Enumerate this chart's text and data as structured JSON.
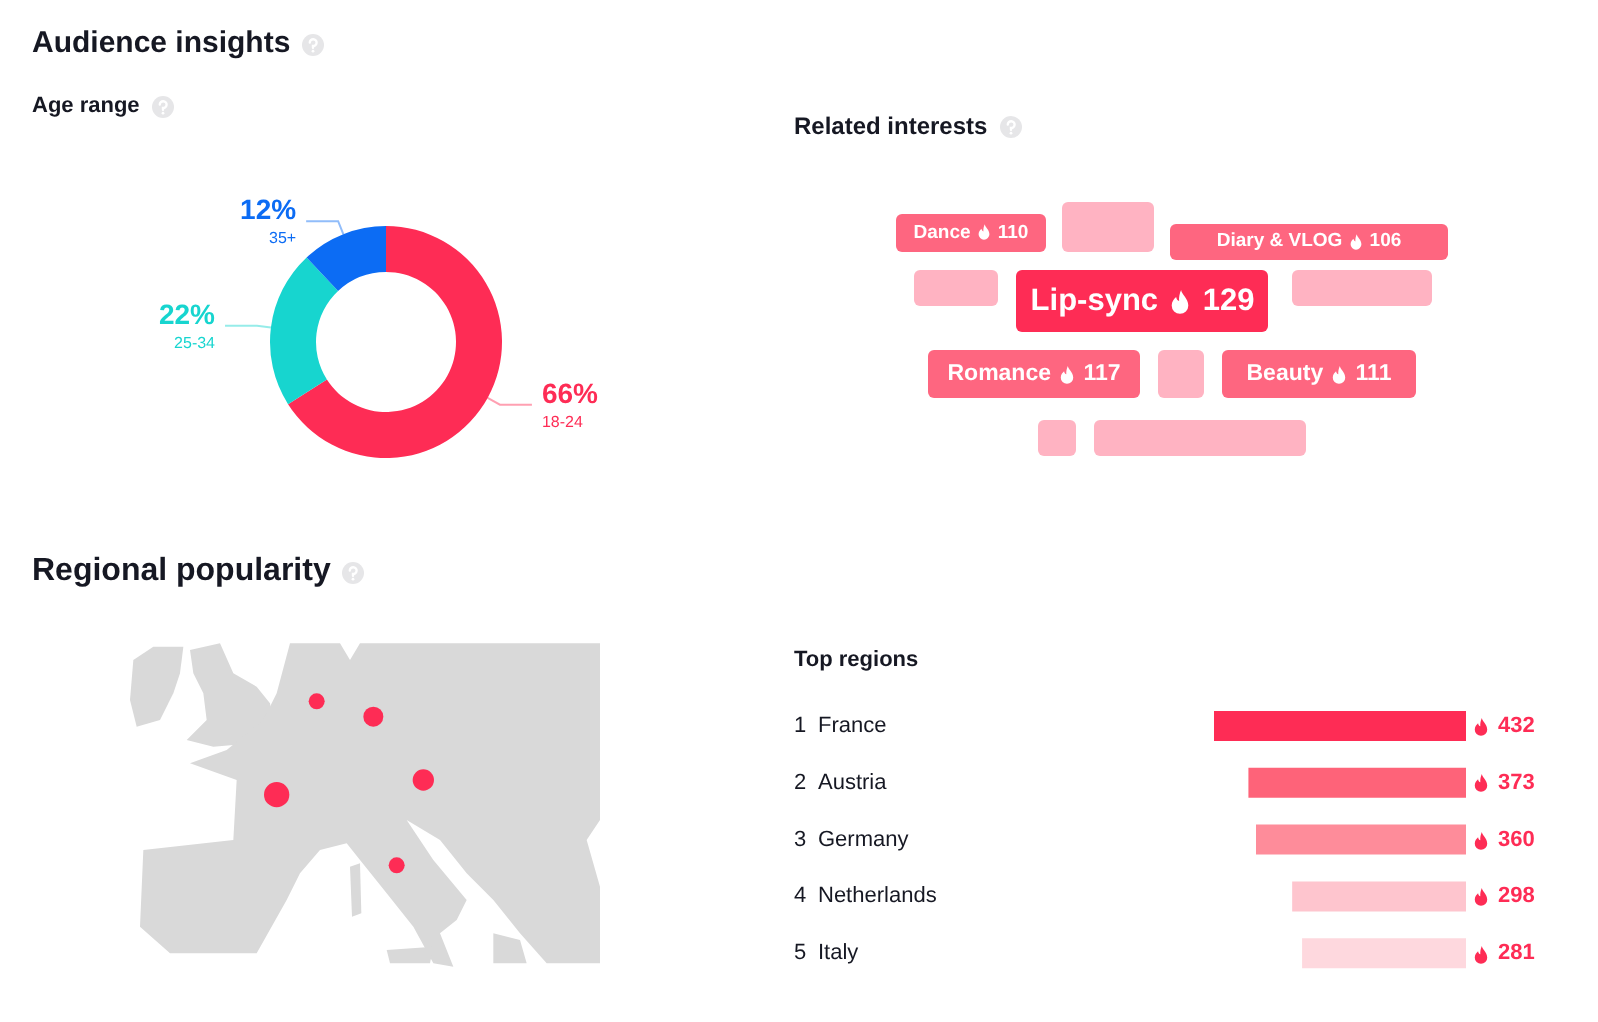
{
  "chart_data": [
    {
      "type": "donut",
      "title": "Audience insights",
      "subtitle": "Age range",
      "categories": [
        "18-24",
        "25-34",
        "35+"
      ],
      "values": [
        66,
        22,
        12
      ],
      "colors": [
        "#fe2c55",
        "#17d5cf",
        "#0c6cf4"
      ],
      "value_labels": [
        "66%",
        "22%",
        "12%"
      ]
    },
    {
      "type": "other",
      "title": "Related interests",
      "categories": [
        "Dance",
        "Diary & VLOG",
        "Lip-sync",
        "Romance",
        "Beauty"
      ],
      "values": [
        110,
        106,
        129,
        117,
        111
      ],
      "colors": [
        "#fe6680",
        "#fe6680",
        "#fe2c55",
        "#fe6680",
        "#fe6680"
      ],
      "data_labels": true
    },
    {
      "type": "other",
      "title": "Regional popularity"
    },
    {
      "type": "bar",
      "orientation": "horizontal",
      "title": "Top regions",
      "categories": [
        "1 France",
        "2 Austria",
        "3 Germany",
        "4 Netherlands",
        "5 Italy"
      ],
      "values": [
        432,
        373,
        360,
        298,
        281
      ],
      "colors": [
        "#fe2c55",
        "#fe6379",
        "#fe8c9a",
        "#fec5ce",
        "#fed8de"
      ],
      "data_labels": true,
      "xlim": [
        432,
        0
      ]
    }
  ]
}
